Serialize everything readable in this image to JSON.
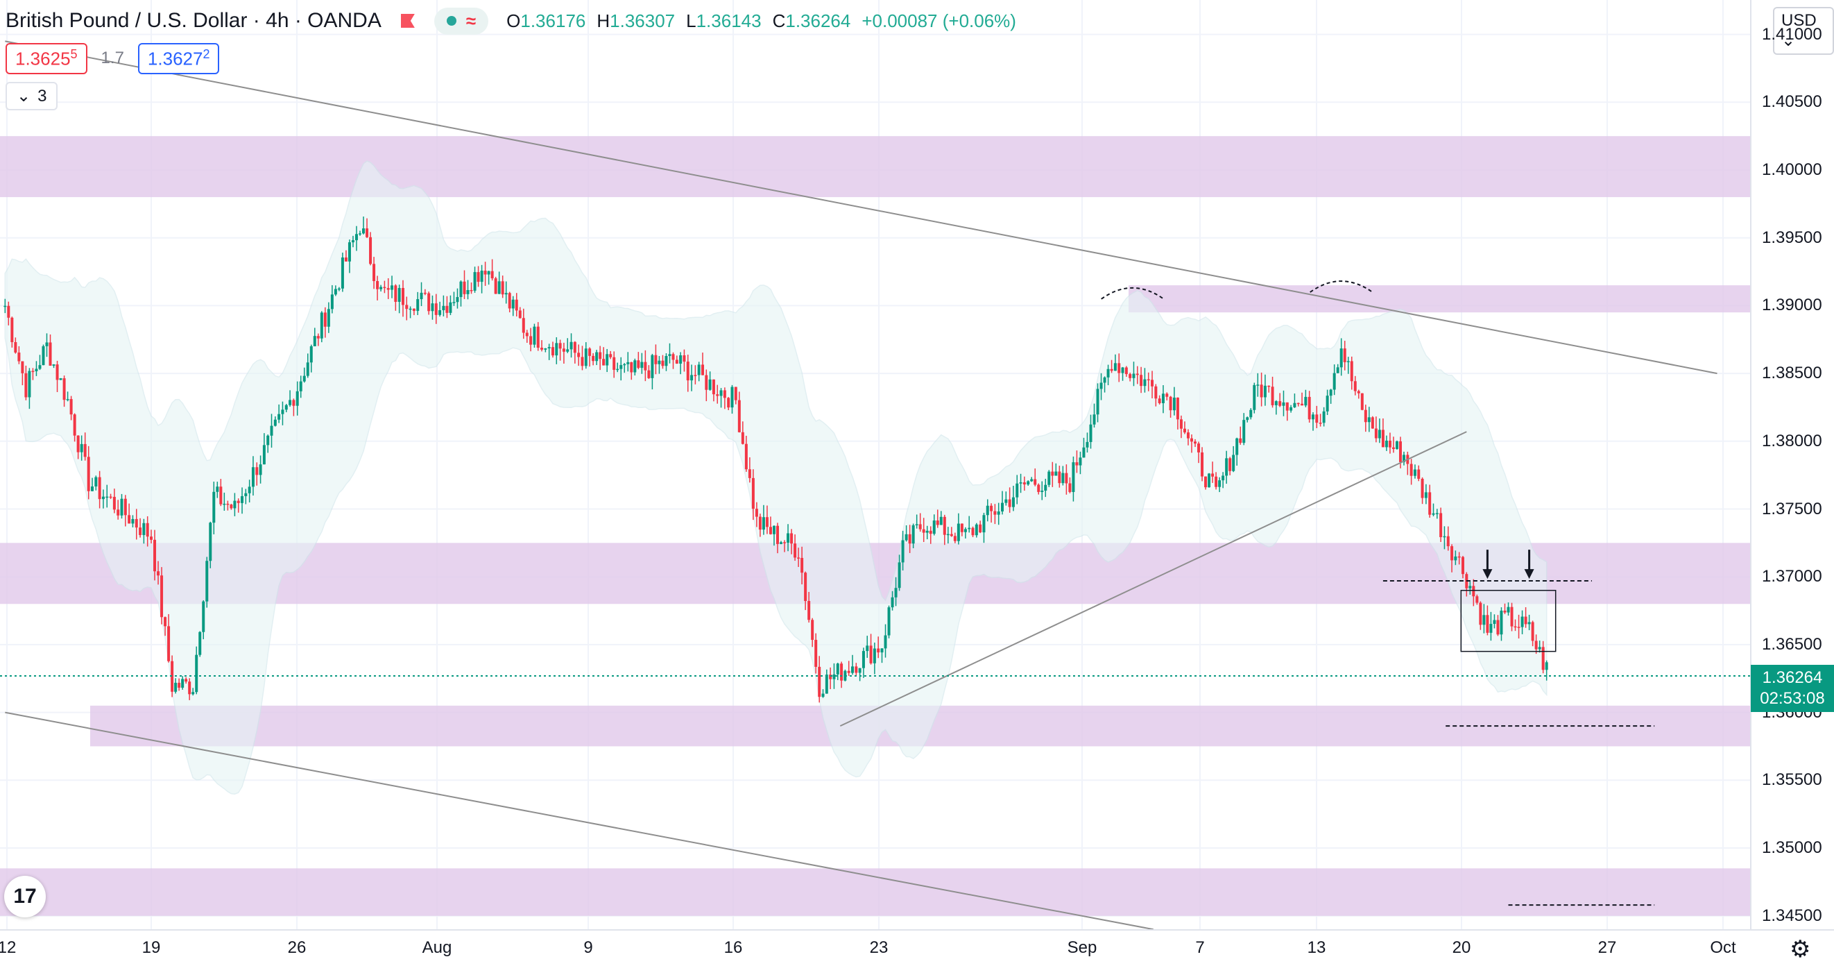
{
  "header": {
    "title": "British Pound / U.S. Dollar · 4h · OANDA",
    "wave_icon": "wave-icon",
    "ohlc": {
      "o_label": "O",
      "o": "1.36176",
      "h_label": "H",
      "h": "1.36307",
      "l_label": "L",
      "l": "1.36143",
      "c_label": "C",
      "c": "1.36264",
      "change": "+0.00087 (+0.06%)"
    }
  },
  "trade": {
    "sell_main": "1.3625",
    "sell_sup": "5",
    "spread": "1.7",
    "buy_main": "1.3627",
    "buy_sup": "2"
  },
  "indicators_toggle": {
    "count": "3"
  },
  "currency_button": "USD",
  "last_price": {
    "price": "1.36264",
    "countdown": "02:53:08"
  },
  "colors": {
    "up": "#089981",
    "down": "#f23645",
    "zone": "#e1c8ea",
    "band": "#e6f4f5",
    "band_line": "#cfe6ea",
    "trendline": "#8e8e8e"
  },
  "chart_data": {
    "type": "candlestick",
    "symbol": "British Pound / U.S. Dollar",
    "timeframe": "4h",
    "broker": "OANDA",
    "ylim": [
      1.3425,
      1.4125
    ],
    "y_ticks": [
      "1.41000",
      "1.40500",
      "1.40000",
      "1.39500",
      "1.39000",
      "1.38500",
      "1.38000",
      "1.37500",
      "1.37000",
      "1.36500",
      "1.36000",
      "1.35500",
      "1.35000",
      "1.34500"
    ],
    "x_ticks": [
      "12",
      "19",
      "26",
      "Aug",
      "9",
      "16",
      "23",
      "Sep",
      "7",
      "13",
      "20",
      "27",
      "Oct"
    ],
    "close_path": [
      {
        "x": "2021-07-12",
        "y": 1.39
      },
      {
        "x": "2021-07-13",
        "y": 1.384
      },
      {
        "x": "2021-07-14",
        "y": 1.387
      },
      {
        "x": "2021-07-15",
        "y": 1.383
      },
      {
        "x": "2021-07-16",
        "y": 1.377
      },
      {
        "x": "2021-07-19",
        "y": 1.373
      },
      {
        "x": "2021-07-20",
        "y": 1.362
      },
      {
        "x": "2021-07-21",
        "y": 1.362
      },
      {
        "x": "2021-07-22",
        "y": 1.376
      },
      {
        "x": "2021-07-23",
        "y": 1.375
      },
      {
        "x": "2021-07-26",
        "y": 1.384
      },
      {
        "x": "2021-07-27",
        "y": 1.388
      },
      {
        "x": "2021-07-29",
        "y": 1.396
      },
      {
        "x": "2021-07-30",
        "y": 1.391
      },
      {
        "x": "2021-08-02",
        "y": 1.39
      },
      {
        "x": "2021-08-04",
        "y": 1.393
      },
      {
        "x": "2021-08-06",
        "y": 1.388
      },
      {
        "x": "2021-08-09",
        "y": 1.386
      },
      {
        "x": "2021-08-11",
        "y": 1.385
      },
      {
        "x": "2021-08-13",
        "y": 1.386
      },
      {
        "x": "2021-08-16",
        "y": 1.383
      },
      {
        "x": "2021-08-17",
        "y": 1.374
      },
      {
        "x": "2021-08-19",
        "y": 1.372
      },
      {
        "x": "2021-08-20",
        "y": 1.362
      },
      {
        "x": "2021-08-23",
        "y": 1.365
      },
      {
        "x": "2021-08-24",
        "y": 1.372
      },
      {
        "x": "2021-08-25",
        "y": 1.374
      },
      {
        "x": "2021-08-27",
        "y": 1.373
      },
      {
        "x": "2021-08-30",
        "y": 1.377
      },
      {
        "x": "2021-09-01",
        "y": 1.377
      },
      {
        "x": "2021-09-03",
        "y": 1.386
      },
      {
        "x": "2021-09-06",
        "y": 1.383
      },
      {
        "x": "2021-09-07",
        "y": 1.379
      },
      {
        "x": "2021-09-08",
        "y": 1.376
      },
      {
        "x": "2021-09-10",
        "y": 1.384
      },
      {
        "x": "2021-09-13",
        "y": 1.382
      },
      {
        "x": "2021-09-14",
        "y": 1.387
      },
      {
        "x": "2021-09-15",
        "y": 1.382
      },
      {
        "x": "2021-09-16",
        "y": 1.38
      },
      {
        "x": "2021-09-17",
        "y": 1.379
      },
      {
        "x": "2021-09-20",
        "y": 1.37
      },
      {
        "x": "2021-09-21",
        "y": 1.366
      },
      {
        "x": "2021-09-22",
        "y": 1.367
      },
      {
        "x": "2021-09-23",
        "y": 1.366
      },
      {
        "x": "2021-09-24",
        "y": 1.3626
      }
    ],
    "horizontal_zones": [
      {
        "from": 1.398,
        "to": 1.4025
      },
      {
        "from": 1.3895,
        "to": 1.3915
      },
      {
        "from": 1.368,
        "to": 1.3725
      },
      {
        "from": 1.3575,
        "to": 1.3605
      },
      {
        "from": 1.345,
        "to": 1.3485
      }
    ],
    "trendlines": [
      {
        "from": {
          "x": "2021-07-12",
          "y": 1.4095
        },
        "to": {
          "x": "2021-10-02",
          "y": 1.385
        }
      },
      {
        "from": {
          "x": "2021-07-12",
          "y": 1.36
        },
        "to": {
          "x": "2021-09-05",
          "y": 1.344
        }
      },
      {
        "from": {
          "x": "2021-08-21",
          "y": 1.359
        },
        "to": {
          "x": "2021-09-20",
          "y": 1.3807
        }
      }
    ],
    "dashed_levels": [
      {
        "y": 1.3697,
        "from": "2021-09-16",
        "to": "2021-09-26"
      },
      {
        "y": 1.359,
        "from": "2021-09-19",
        "to": "2021-09-29"
      },
      {
        "y": 1.3458,
        "from": "2021-09-22",
        "to": "2021-09-29"
      }
    ],
    "consolidation_box": {
      "x_from": "2021-09-20",
      "x_to": "2021-09-24",
      "y_from": 1.3645,
      "y_to": 1.369
    },
    "arrows": [
      {
        "x": "2021-09-21",
        "y": 1.372
      },
      {
        "x": "2021-09-23",
        "y": 1.372
      }
    ],
    "double_top_arcs": [
      {
        "x": "2021-09-04",
        "y": 1.391
      },
      {
        "x": "2021-09-14",
        "y": 1.3915
      }
    ],
    "grid": true,
    "bollinger_bands": true
  }
}
